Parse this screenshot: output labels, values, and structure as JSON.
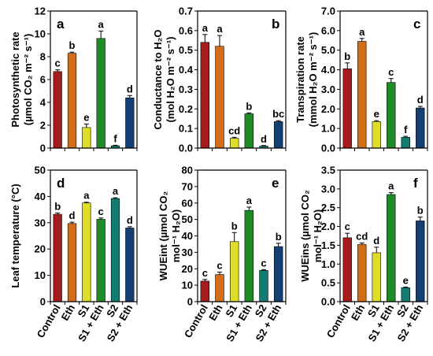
{
  "categories": [
    "Control",
    "Eth",
    "S1",
    "S1 + Eth",
    "S2",
    "S2 + Eth"
  ],
  "bar_colors": [
    "#a41c1c",
    "#d36d17",
    "#dede29",
    "#1f8b26",
    "#137c72",
    "#143f72"
  ],
  "chart_data": [
    {
      "type": "bar",
      "panel_label": "a",
      "ylabel_lines": [
        "Photosynthetic rate",
        "(µmol CO₂ m⁻² s⁻¹)"
      ],
      "categories": [
        "Control",
        "Eth",
        "S1",
        "S1 + Eth",
        "S2",
        "S2 + Eth"
      ],
      "values": [
        6.7,
        8.3,
        1.8,
        9.6,
        0.2,
        4.4
      ],
      "errors": [
        0.15,
        0.1,
        0.3,
        0.65,
        0.05,
        0.2
      ],
      "letters": [
        "c",
        "b",
        "e",
        "a",
        "f",
        "d"
      ],
      "ylim": [
        0,
        12
      ],
      "yticks": [
        "0",
        "2",
        "4",
        "6",
        "8",
        "10",
        "12"
      ]
    },
    {
      "type": "bar",
      "panel_label": "b",
      "ylabel_lines": [
        "Conductance to H₂O",
        "(mol H₂O m⁻² s⁻¹)"
      ],
      "categories": [
        "Control",
        "Eth",
        "S1",
        "S1 + Eth",
        "S2",
        "S2 + Eth"
      ],
      "values": [
        0.54,
        0.52,
        0.05,
        0.175,
        0.01,
        0.135
      ],
      "errors": [
        0.04,
        0.055,
        0.005,
        0.005,
        0.003,
        0.005
      ],
      "letters": [
        "a",
        "a",
        "cd",
        "b",
        "d",
        "bc"
      ],
      "ylim": [
        0,
        0.7
      ],
      "yticks": [
        "0.0",
        "0.1",
        "0.2",
        "0.3",
        "0.4",
        "0.5",
        "0.6",
        "0.7"
      ]
    },
    {
      "type": "bar",
      "panel_label": "c",
      "ylabel_lines": [
        "Transpiration rate",
        "(mmol H₂O m⁻² s⁻¹)"
      ],
      "categories": [
        "Control",
        "Eth",
        "S1",
        "S1 + Eth",
        "S2",
        "S2 + Eth"
      ],
      "values": [
        4.05,
        5.45,
        1.35,
        3.35,
        0.55,
        2.05
      ],
      "errors": [
        0.3,
        0.15,
        0.05,
        0.2,
        0.05,
        0.08
      ],
      "letters": [
        "b",
        "a",
        "e",
        "c",
        "f",
        "d"
      ],
      "ylim": [
        0,
        7
      ],
      "yticks": [
        "0.0",
        "1.0",
        "2.0",
        "3.0",
        "4.0",
        "5.0",
        "6.0",
        "7.0"
      ]
    },
    {
      "type": "bar",
      "panel_label": "d",
      "ylabel_lines": [
        "Leaf temperature (°C)"
      ],
      "categories": [
        "Control",
        "Eth",
        "S1",
        "S1 + Eth",
        "S2",
        "S2 + Eth"
      ],
      "values": [
        33.2,
        29.7,
        37.5,
        31.3,
        39.2,
        28.0
      ],
      "errors": [
        0.5,
        0.5,
        0.3,
        0.5,
        0.3,
        0.5
      ],
      "letters": [
        "b",
        "d",
        "a",
        "c",
        "a",
        "d"
      ],
      "ylim": [
        0,
        50
      ],
      "yticks": [
        "0",
        "10",
        "20",
        "30",
        "40",
        "50"
      ]
    },
    {
      "type": "bar",
      "panel_label": "e",
      "ylabel_lines": [
        "WUEint (µmol CO₂",
        "mol⁻¹ H₂O)"
      ],
      "categories": [
        "Control",
        "Eth",
        "S1",
        "S1 + Eth",
        "S2",
        "S2 + Eth"
      ],
      "values": [
        12.5,
        16.5,
        36.5,
        55.5,
        19.0,
        33.5
      ],
      "errors": [
        1.0,
        1.5,
        5.5,
        2.0,
        0.5,
        2.0
      ],
      "letters": [
        "c",
        "c",
        "b",
        "a",
        "c",
        "b"
      ],
      "ylim": [
        0,
        80
      ],
      "yticks": [
        "0",
        "10",
        "20",
        "30",
        "40",
        "50",
        "60",
        "70",
        "80"
      ]
    },
    {
      "type": "bar",
      "panel_label": "f",
      "ylabel_lines": [
        "WUEins (µmol CO₂",
        "mol⁻¹ H₂O)"
      ],
      "categories": [
        "Control",
        "Eth",
        "S1",
        "S1 + Eth",
        "S2",
        "S2 + Eth"
      ],
      "values": [
        1.7,
        1.52,
        1.3,
        2.85,
        0.37,
        2.15
      ],
      "errors": [
        0.12,
        0.04,
        0.15,
        0.05,
        0.02,
        0.1
      ],
      "letters": [
        "c",
        "cd",
        "d",
        "a",
        "e",
        "b"
      ],
      "ylim": [
        0,
        3.5
      ],
      "yticks": [
        "0.0",
        "0.5",
        "1.0",
        "1.5",
        "2.0",
        "2.5",
        "3.0",
        "3.5"
      ]
    }
  ]
}
